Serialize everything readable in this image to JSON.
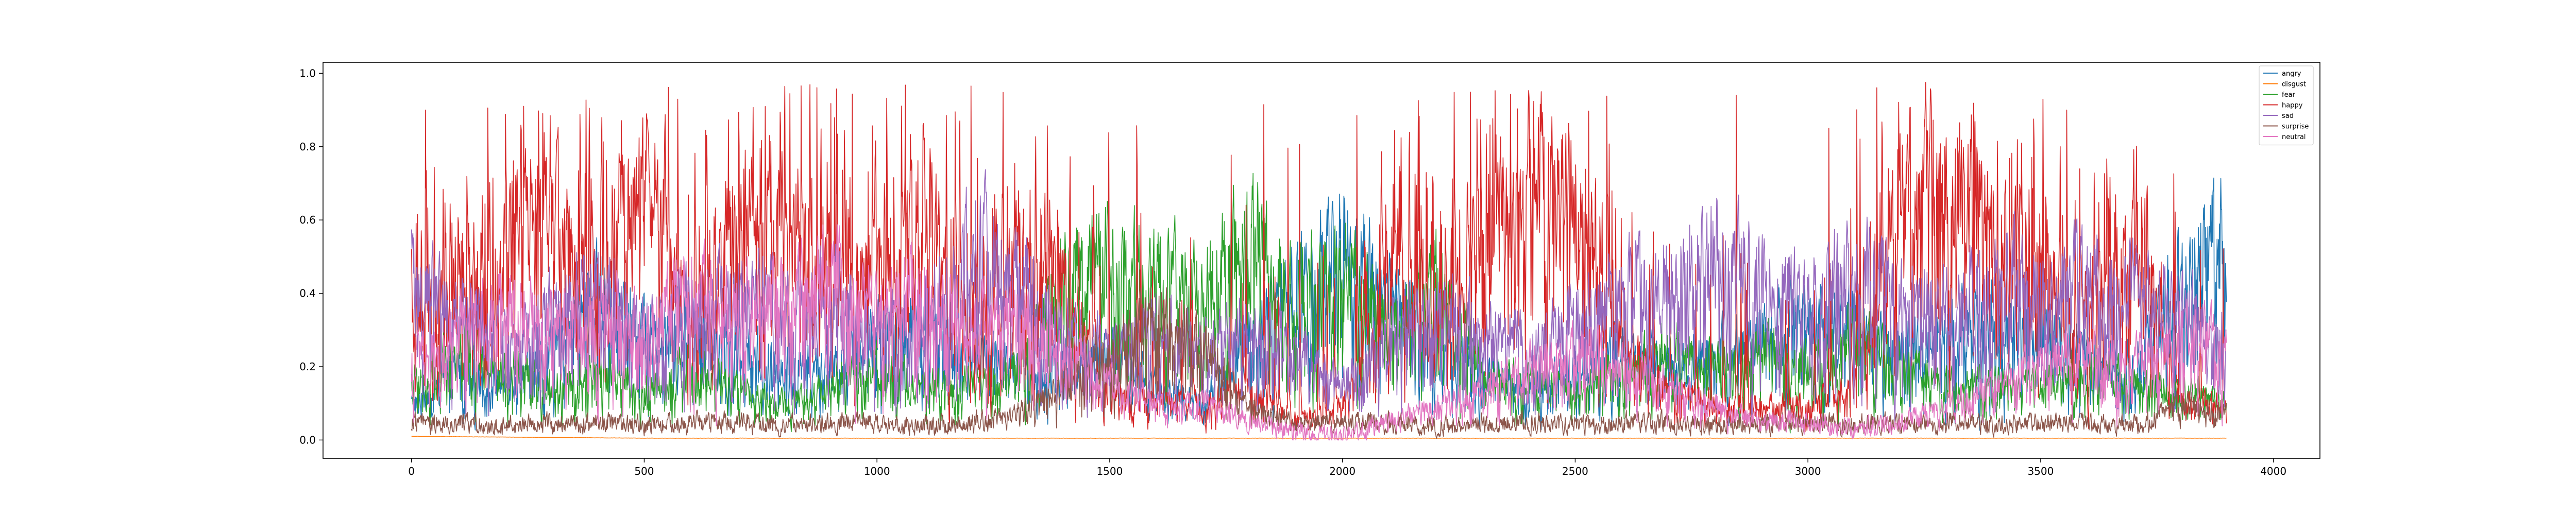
{
  "chart_data": {
    "type": "line",
    "title": "",
    "xlabel": "",
    "ylabel": "",
    "xlim": [
      -190,
      4100
    ],
    "ylim": [
      -0.05,
      1.03
    ],
    "x_ticks": [
      0,
      500,
      1000,
      1500,
      2000,
      2500,
      3000,
      3500,
      4000
    ],
    "x_tick_labels": [
      "0",
      "500",
      "1000",
      "1500",
      "2000",
      "2500",
      "3000",
      "3500",
      "4000"
    ],
    "y_ticks": [
      0.0,
      0.2,
      0.4,
      0.6,
      0.8,
      1.0
    ],
    "y_tick_labels": [
      "0.0",
      "0.2",
      "0.4",
      "0.6",
      "0.8",
      "1.0"
    ],
    "grid": false,
    "legend_position": "top-right",
    "n_points": 3900,
    "x_step": 1,
    "series": [
      {
        "name": "angry",
        "color": "#1f77b4",
        "x": [
          0,
          100,
          200,
          300,
          400,
          500,
          600,
          700,
          800,
          900,
          1000,
          1100,
          1200,
          1300,
          1400,
          1500,
          1600,
          1700,
          1800,
          1900,
          2000,
          2100,
          2200,
          2300,
          2400,
          2500,
          2600,
          2700,
          2800,
          2900,
          3000,
          3100,
          3200,
          3300,
          3400,
          3500,
          3600,
          3700,
          3800,
          3890
        ],
        "values": [
          0.1,
          0.2,
          0.15,
          0.25,
          0.4,
          0.3,
          0.35,
          0.25,
          0.2,
          0.2,
          0.3,
          0.35,
          0.25,
          0.2,
          0.2,
          0.25,
          0.15,
          0.1,
          0.3,
          0.45,
          0.55,
          0.4,
          0.25,
          0.2,
          0.15,
          0.2,
          0.25,
          0.2,
          0.25,
          0.3,
          0.35,
          0.3,
          0.25,
          0.3,
          0.35,
          0.3,
          0.25,
          0.2,
          0.45,
          0.55
        ]
      },
      {
        "name": "disgust",
        "color": "#ff7f0e",
        "x": [
          0,
          500,
          1000,
          1500,
          2000,
          2500,
          3000,
          3500,
          3890
        ],
        "values": [
          0.01,
          0.005,
          0.005,
          0.005,
          0.005,
          0.005,
          0.005,
          0.005,
          0.005
        ]
      },
      {
        "name": "fear",
        "color": "#2ca02c",
        "x": [
          0,
          100,
          200,
          300,
          400,
          500,
          600,
          700,
          800,
          900,
          1000,
          1100,
          1200,
          1300,
          1400,
          1500,
          1600,
          1700,
          1800,
          1900,
          2000,
          2100,
          2200,
          2300,
          2400,
          2500,
          2600,
          2700,
          2800,
          2900,
          3000,
          3100,
          3200,
          3300,
          3400,
          3500,
          3600,
          3700,
          3800,
          3890
        ],
        "values": [
          0.15,
          0.25,
          0.2,
          0.15,
          0.2,
          0.15,
          0.2,
          0.15,
          0.1,
          0.15,
          0.2,
          0.15,
          0.15,
          0.2,
          0.45,
          0.5,
          0.45,
          0.4,
          0.55,
          0.4,
          0.45,
          0.3,
          0.45,
          0.2,
          0.15,
          0.15,
          0.2,
          0.25,
          0.2,
          0.25,
          0.2,
          0.3,
          0.2,
          0.15,
          0.15,
          0.15,
          0.2,
          0.15,
          0.15,
          0.1
        ]
      },
      {
        "name": "happy",
        "color": "#d62728",
        "x": [
          0,
          100,
          200,
          300,
          400,
          500,
          600,
          700,
          800,
          900,
          1000,
          1100,
          1200,
          1300,
          1400,
          1500,
          1600,
          1700,
          1800,
          1900,
          2000,
          2100,
          2200,
          2300,
          2400,
          2500,
          2600,
          2700,
          2800,
          2900,
          3000,
          3100,
          3200,
          3300,
          3400,
          3500,
          3600,
          3700,
          3800,
          3890
        ],
        "values": [
          0.3,
          0.45,
          0.5,
          0.6,
          0.4,
          0.7,
          0.3,
          0.6,
          0.5,
          0.4,
          0.45,
          0.55,
          0.3,
          0.5,
          0.4,
          0.15,
          0.1,
          0.1,
          0.15,
          0.05,
          0.1,
          0.4,
          0.3,
          0.55,
          0.75,
          0.6,
          0.25,
          0.15,
          0.1,
          0.1,
          0.1,
          0.15,
          0.6,
          0.75,
          0.55,
          0.45,
          0.35,
          0.55,
          0.1,
          0.1
        ]
      },
      {
        "name": "sad",
        "color": "#9467bd",
        "x": [
          0,
          100,
          200,
          300,
          400,
          500,
          600,
          700,
          800,
          900,
          1000,
          1100,
          1200,
          1300,
          1400,
          1500,
          1600,
          1700,
          1800,
          1900,
          2000,
          2100,
          2200,
          2300,
          2400,
          2500,
          2600,
          2700,
          2800,
          2900,
          3000,
          3100,
          3200,
          3300,
          3400,
          3500,
          3600,
          3700,
          3800,
          3890
        ],
        "values": [
          0.45,
          0.35,
          0.3,
          0.35,
          0.4,
          0.3,
          0.35,
          0.4,
          0.35,
          0.4,
          0.3,
          0.35,
          0.55,
          0.45,
          0.3,
          0.25,
          0.3,
          0.25,
          0.3,
          0.25,
          0.15,
          0.3,
          0.35,
          0.3,
          0.25,
          0.35,
          0.4,
          0.45,
          0.5,
          0.45,
          0.4,
          0.45,
          0.4,
          0.35,
          0.45,
          0.4,
          0.45,
          0.4,
          0.35,
          0.3
        ]
      },
      {
        "name": "surprise",
        "color": "#8c564b",
        "x": [
          0,
          100,
          200,
          300,
          400,
          500,
          600,
          700,
          800,
          900,
          1000,
          1100,
          1200,
          1300,
          1400,
          1500,
          1600,
          1700,
          1800,
          1900,
          2000,
          2100,
          2200,
          2300,
          2400,
          2500,
          2600,
          2700,
          2800,
          2900,
          3000,
          3100,
          3200,
          3300,
          3400,
          3500,
          3600,
          3700,
          3800,
          3890
        ],
        "values": [
          0.05,
          0.05,
          0.04,
          0.05,
          0.05,
          0.04,
          0.05,
          0.05,
          0.04,
          0.05,
          0.05,
          0.04,
          0.05,
          0.08,
          0.15,
          0.25,
          0.35,
          0.25,
          0.1,
          0.05,
          0.05,
          0.05,
          0.04,
          0.05,
          0.05,
          0.04,
          0.05,
          0.05,
          0.04,
          0.05,
          0.05,
          0.04,
          0.05,
          0.05,
          0.04,
          0.05,
          0.05,
          0.04,
          0.1,
          0.08
        ]
      },
      {
        "name": "neutral",
        "color": "#e377c2",
        "x": [
          0,
          100,
          200,
          300,
          400,
          500,
          600,
          700,
          800,
          900,
          1000,
          1100,
          1200,
          1300,
          1400,
          1500,
          1600,
          1700,
          1800,
          1900,
          2000,
          2100,
          2200,
          2300,
          2400,
          2500,
          2600,
          2700,
          2800,
          2900,
          3000,
          3100,
          3200,
          3300,
          3400,
          3500,
          3600,
          3700,
          3800,
          3890
        ],
        "values": [
          0.2,
          0.3,
          0.35,
          0.3,
          0.35,
          0.3,
          0.4,
          0.35,
          0.4,
          0.45,
          0.35,
          0.4,
          0.3,
          0.35,
          0.25,
          0.15,
          0.1,
          0.1,
          0.05,
          0.02,
          0.01,
          0.05,
          0.1,
          0.15,
          0.2,
          0.25,
          0.2,
          0.15,
          0.1,
          0.05,
          0.05,
          0.03,
          0.05,
          0.1,
          0.15,
          0.2,
          0.25,
          0.2,
          0.3,
          0.25
        ]
      }
    ]
  }
}
